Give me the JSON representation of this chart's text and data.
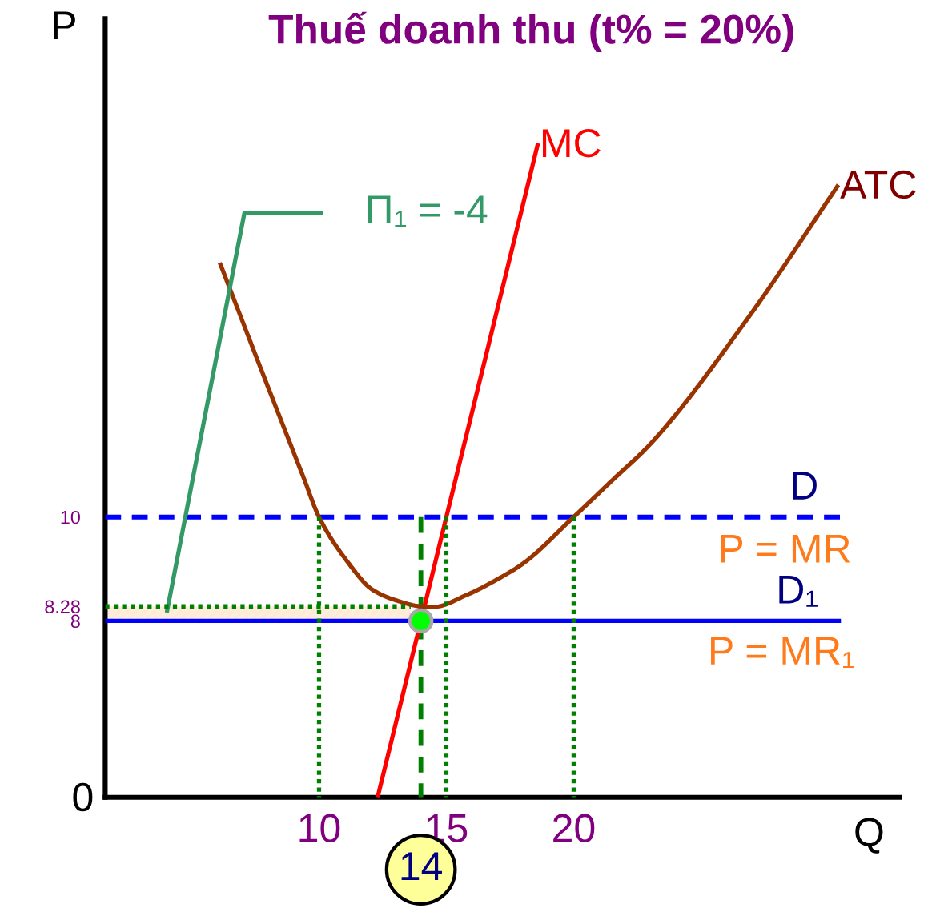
{
  "chart_data": {
    "type": "line",
    "title": "Thuế doanh thu (t% = 20%)",
    "xlabel": "Q",
    "ylabel": "P",
    "xlim": [
      1.6,
      32.8
    ],
    "ylim": [
      4.6,
      19.6
    ],
    "xticks": [
      10,
      15,
      20
    ],
    "yticks": [
      8,
      8.28,
      10
    ],
    "series": [
      {
        "x": [
          1.6,
          13.6
        ],
        "values": [
          8.28,
          8.28
        ],
        "lower": [
          8,
          8
        ],
        "upper": [
          8.28,
          8.28
        ],
        "color": "#008000",
        "line_style": "dotted"
      },
      {
        "x": [
          10,
          10
        ],
        "values": [
          10,
          4.6
        ],
        "color": "#008000",
        "line_style": "dotted"
      },
      {
        "x": [
          15,
          15
        ],
        "values": [
          10,
          4.6
        ],
        "color": "#008000",
        "line_style": "dotted"
      },
      {
        "x": [
          20,
          20
        ],
        "values": [
          10,
          4.6
        ],
        "color": "#008000",
        "line_style": "dotted"
      },
      {
        "x": [
          14,
          14
        ],
        "values": [
          10,
          4.6
        ],
        "color": "#008000",
        "line_style": "dashed"
      },
      {
        "name": "D",
        "x": [
          1.6,
          30.5
        ],
        "values": [
          10,
          10
        ],
        "color": "#0000ff",
        "line_style": "dashed"
      },
      {
        "name": "D₁",
        "x": [
          1.6,
          30.5
        ],
        "values": [
          8,
          8
        ],
        "color": "#0000ff",
        "line_style": "solid"
      },
      {
        "name": "MC",
        "x": [
          12.3,
          14,
          15,
          18.6
        ],
        "values": [
          4.6,
          8,
          10,
          17.2
        ],
        "color": "#ff0000",
        "line_style": "solid"
      },
      {
        "name": "ATC",
        "x": [
          6.1,
          8.0,
          9.4,
          10,
          11.1,
          12.1,
          13.0,
          14,
          14.5,
          15.8,
          17,
          18,
          20,
          21.5,
          23,
          26.8,
          30.4
        ],
        "values": [
          14.9,
          12.5,
          10.75,
          10,
          9.15,
          8.6,
          8.4,
          8.28,
          8.27,
          8.5,
          8.8,
          9.1,
          10,
          10.7,
          11.4,
          13.8,
          16.4
        ],
        "color": "#993300",
        "line_style": "solid"
      },
      {
        "type": "scatter",
        "x": [
          14
        ],
        "values": [
          8
        ],
        "color": "#00ff00",
        "marker": "circle"
      }
    ],
    "annotations": [
      "0",
      "Π₁ = -4",
      "P = MR",
      "P = MR₁",
      "14"
    ]
  }
}
